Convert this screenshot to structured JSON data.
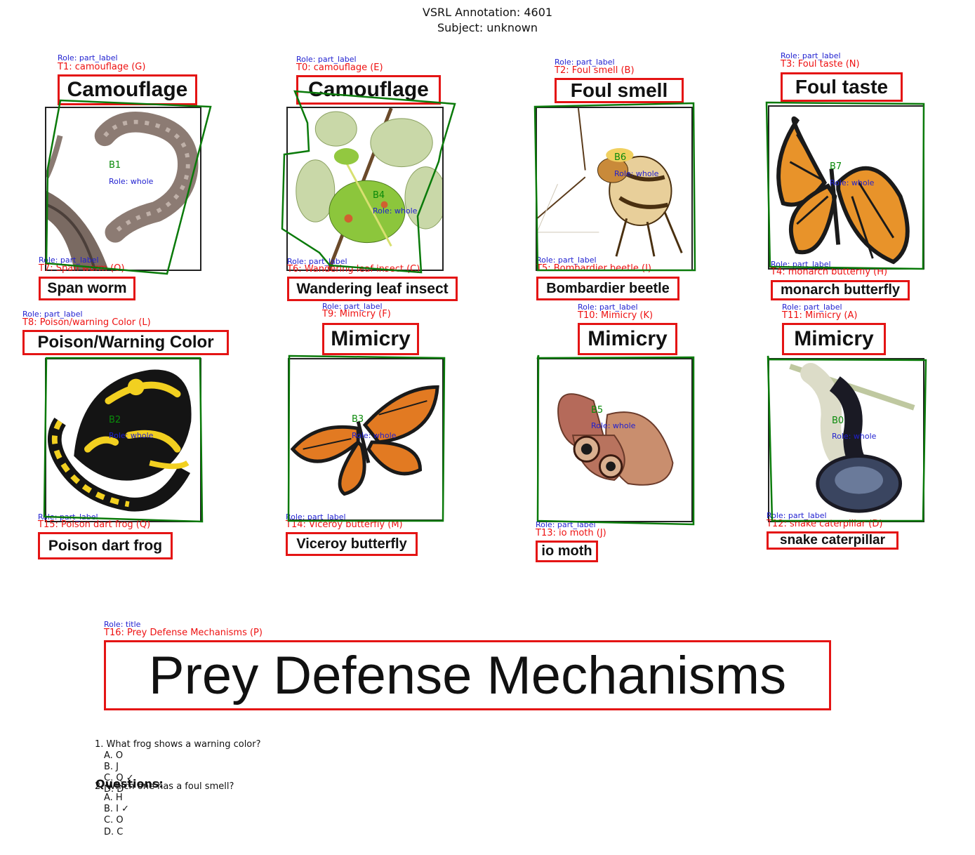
{
  "header": {
    "title": "VSRL Annotation: 4601",
    "subtitle": "Subject: unknown"
  },
  "role_part": "Role: part_label",
  "role_whole": "Role: whole",
  "role_title": "Role: title",
  "labels": {
    "T0": {
      "tag": "T0: camouflage (E)",
      "text": "Camouflage"
    },
    "T1": {
      "tag": "T1: camouflage (G)",
      "text": "Camouflage"
    },
    "T2": {
      "tag": "T2: Foul smell (B)",
      "text": "Foul smell"
    },
    "T3": {
      "tag": "T3: Foul taste (N)",
      "text": "Foul taste"
    },
    "T4": {
      "tag": "T4: monarch butterfly (H)",
      "text": "monarch butterfly"
    },
    "T5": {
      "tag": "T5: Bombardier beetle (I)",
      "text": "Bombardier beetle"
    },
    "T6": {
      "tag": "T6: Wandering leaf insect (C)",
      "text": "Wandering leaf insect"
    },
    "T7": {
      "tag": "T7: Span worm (O)",
      "text": "Span worm"
    },
    "T8": {
      "tag": "T8: Poison/warning Color (L)",
      "text": "Poison/Warning Color"
    },
    "T9": {
      "tag": "T9: Mimicry (F)",
      "text": "Mimicry"
    },
    "T10": {
      "tag": "T10: Mimicry (K)",
      "text": "Mimicry"
    },
    "T11": {
      "tag": "T11: Mimicry (A)",
      "text": "Mimicry"
    },
    "T12": {
      "tag": "T12: snake caterpillar (D)",
      "text": "snake caterpillar"
    },
    "T13": {
      "tag": "T13: io moth (J)",
      "text": "io moth"
    },
    "T14": {
      "tag": "T14: Viceroy butterfly (M)",
      "text": "Viceroy butterfly"
    },
    "T15": {
      "tag": "T15: Poison dart frog (Q)",
      "text": "Poison dart frog"
    },
    "T16": {
      "tag": "T16: Prey Defense Mechanisms (P)",
      "text": "Prey Defense Mechanisms"
    }
  },
  "blobs": {
    "B0": "B0",
    "B1": "B1",
    "B2": "B2",
    "B3": "B3",
    "B4": "B4",
    "B5": "B5",
    "B6": "B6",
    "B7": "B7"
  },
  "colors": {
    "label_box": "#e41414",
    "blob_outline": "#0a7a0a",
    "role_text": "#1f1fd0",
    "tag_text": "#e11111"
  },
  "questions": {
    "heading": "Questions:",
    "q1": {
      "text": "1. What frog shows a warning color?",
      "options": [
        "A. O",
        "B. J",
        "C. Q ✓",
        "D. D"
      ]
    },
    "q2": {
      "text": "2. Which one has a foul smell?",
      "options": [
        "A. H",
        "B. I ✓",
        "C. O",
        "D. C"
      ]
    }
  }
}
